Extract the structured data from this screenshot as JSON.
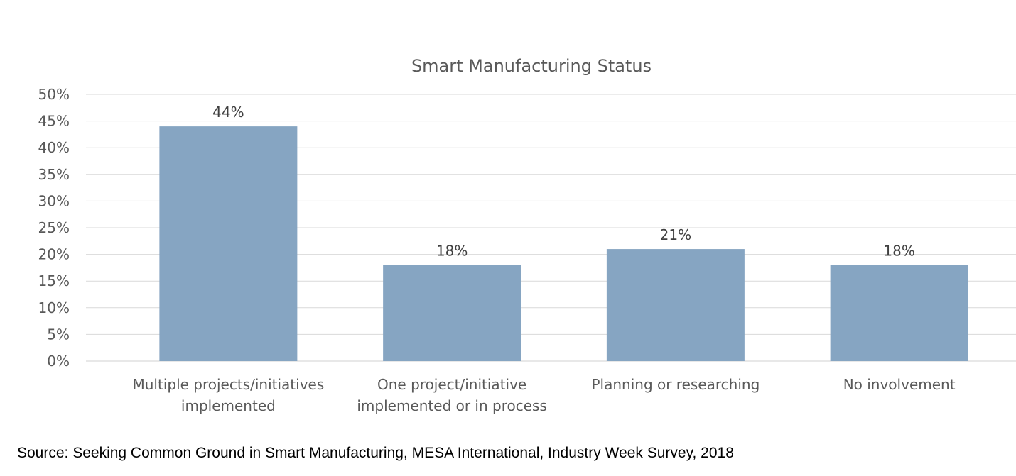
{
  "chart_data": {
    "type": "bar",
    "title": "Smart Manufacturing Status",
    "xlabel": "",
    "ylabel": "",
    "categories": [
      [
        "Multiple projects/initiatives",
        "implemented"
      ],
      [
        "One project/initiative",
        "implemented or in process"
      ],
      [
        "Planning or researching"
      ],
      [
        "No involvement"
      ]
    ],
    "values": [
      44,
      18,
      21,
      18
    ],
    "data_labels": [
      "44%",
      "18%",
      "21%",
      "18%"
    ],
    "ylim": [
      0,
      50
    ],
    "y_ticks": [
      0,
      5,
      10,
      15,
      20,
      25,
      30,
      35,
      40,
      45,
      50
    ],
    "y_tick_labels": [
      "0%",
      "5%",
      "10%",
      "15%",
      "20%",
      "25%",
      "30%",
      "35%",
      "40%",
      "45%",
      "50%"
    ],
    "grid": true,
    "legend": "none",
    "colors": {
      "bar": "#86a5c2",
      "grid": "#d9d9d9",
      "text": "#595959",
      "data_label": "#404040"
    }
  },
  "source": "Source: Seeking Common Ground in Smart Manufacturing, MESA International, Industry Week Survey, 2018"
}
